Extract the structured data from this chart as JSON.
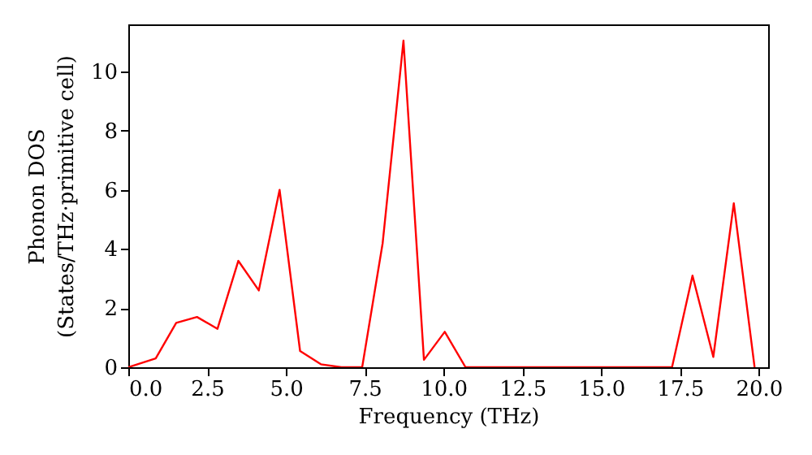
{
  "chart_data": {
    "type": "line",
    "xlabel": "Frequency (THz)",
    "ylabel": "Phonon DOS\n(States/THz·primitive cell)",
    "x": [
      0,
      0.87,
      1.52,
      2.18,
      2.83,
      3.49,
      4.14,
      4.8,
      5.45,
      6.11,
      6.76,
      7.42,
      8.07,
      8.73,
      9.38,
      10.04,
      10.7,
      17.25,
      17.9,
      18.56,
      19.21,
      19.87
    ],
    "series": [
      {
        "color": "#ff0000",
        "values": [
          0,
          0.3,
          1.5,
          1.7,
          1.3,
          3.6,
          2.6,
          6.0,
          0.55,
          0.1,
          0,
          0,
          4.2,
          11.05,
          0.25,
          1.2,
          0,
          0,
          3.1,
          0.35,
          5.55,
          0
        ]
      }
    ],
    "xlim": [
      0,
      20.3
    ],
    "ylim": [
      0,
      11.6
    ],
    "xticks": [
      {
        "value": 0,
        "label": "0.0"
      },
      {
        "value": 2.5,
        "label": "2.5"
      },
      {
        "value": 5,
        "label": "5.0"
      },
      {
        "value": 7.5,
        "label": "7.5"
      },
      {
        "value": 10,
        "label": "10.0"
      },
      {
        "value": 12.5,
        "label": "12.5"
      },
      {
        "value": 15,
        "label": "15.0"
      },
      {
        "value": 17.5,
        "label": "17.5"
      },
      {
        "value": 20,
        "label": "20.0"
      }
    ],
    "yticks": [
      0,
      2,
      4,
      6,
      8,
      10
    ],
    "grid": false,
    "marker": "none",
    "line_style": "solid"
  }
}
